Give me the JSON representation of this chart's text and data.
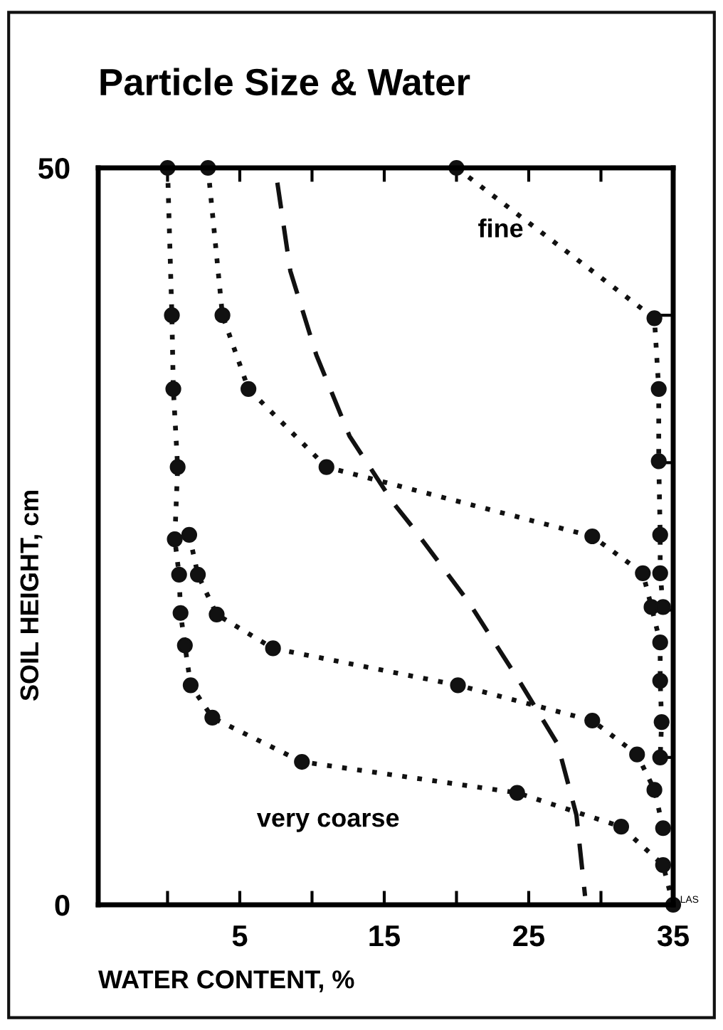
{
  "chart_data": {
    "type": "line",
    "title": "Particle Size & Water",
    "xlabel": "WATER CONTENT, %",
    "ylabel": "SOIL HEIGHT, cm",
    "xlim": [
      -4.8,
      35
    ],
    "ylim": [
      0,
      50
    ],
    "xticks": [
      {
        "value": 0,
        "label": null
      },
      5,
      {
        "value": 10,
        "label": null
      },
      15,
      {
        "value": 20,
        "label": null
      },
      25,
      {
        "value": 30,
        "label": null
      },
      35
    ],
    "yticks": [
      0,
      {
        "value": 10,
        "label": null
      },
      {
        "value": 20,
        "label": null
      },
      {
        "value": 30,
        "label": null
      },
      {
        "value": 40,
        "label": null
      },
      50
    ],
    "marker": "circle",
    "line_style": "dotted",
    "grid": false,
    "legend": false,
    "series": [
      {
        "color": "#111111",
        "x": [
          0,
          0.3,
          0.4,
          0.7,
          0.5,
          0.8,
          0.9,
          1.2,
          1.6,
          3.1,
          9.3,
          24.2,
          31.4,
          34.3,
          35
        ],
        "values": [
          50,
          40,
          35,
          29.7,
          24.8,
          22.4,
          19.8,
          17.6,
          14.9,
          12.7,
          9.7,
          7.6,
          5.3,
          2.7,
          0
        ]
      },
      {
        "color": "#111111",
        "x": [
          1.5,
          2.1,
          3.4,
          7.3,
          20.1,
          29.4,
          32.5,
          33.7,
          34.3
        ],
        "values": [
          25.1,
          22.4,
          19.7,
          17.4,
          14.9,
          12.5,
          10.2,
          7.8,
          5.2
        ]
      },
      {
        "color": "#111111",
        "x": [
          2.8,
          3.8,
          5.6,
          11,
          29.4,
          32.9,
          33.5,
          34.1,
          34.1,
          34.2,
          34.1
        ],
        "values": [
          50,
          40,
          35,
          29.7,
          25,
          22.5,
          20.2,
          17.8,
          15.2,
          12.4,
          10
        ]
      },
      {
        "color": "#111111",
        "x": [
          20,
          33.7,
          34,
          34,
          34.1,
          34.1,
          34.3
        ],
        "values": [
          50,
          39.8,
          35,
          30.1,
          25.1,
          22.5,
          20.2
        ]
      },
      {
        "color": "#111111",
        "marker": "none",
        "line_style": "dashed",
        "x": [
          7.6,
          8.5,
          10.3,
          12.6,
          15.6,
          16.9,
          20.8,
          24.4,
          27,
          28.3,
          28.9
        ],
        "values": [
          49,
          43,
          37.3,
          31.8,
          27.3,
          25.7,
          20.6,
          15.1,
          10.9,
          6.1,
          0.6
        ]
      }
    ],
    "annotations": [
      "fine",
      "very coarse",
      "LAS"
    ]
  }
}
